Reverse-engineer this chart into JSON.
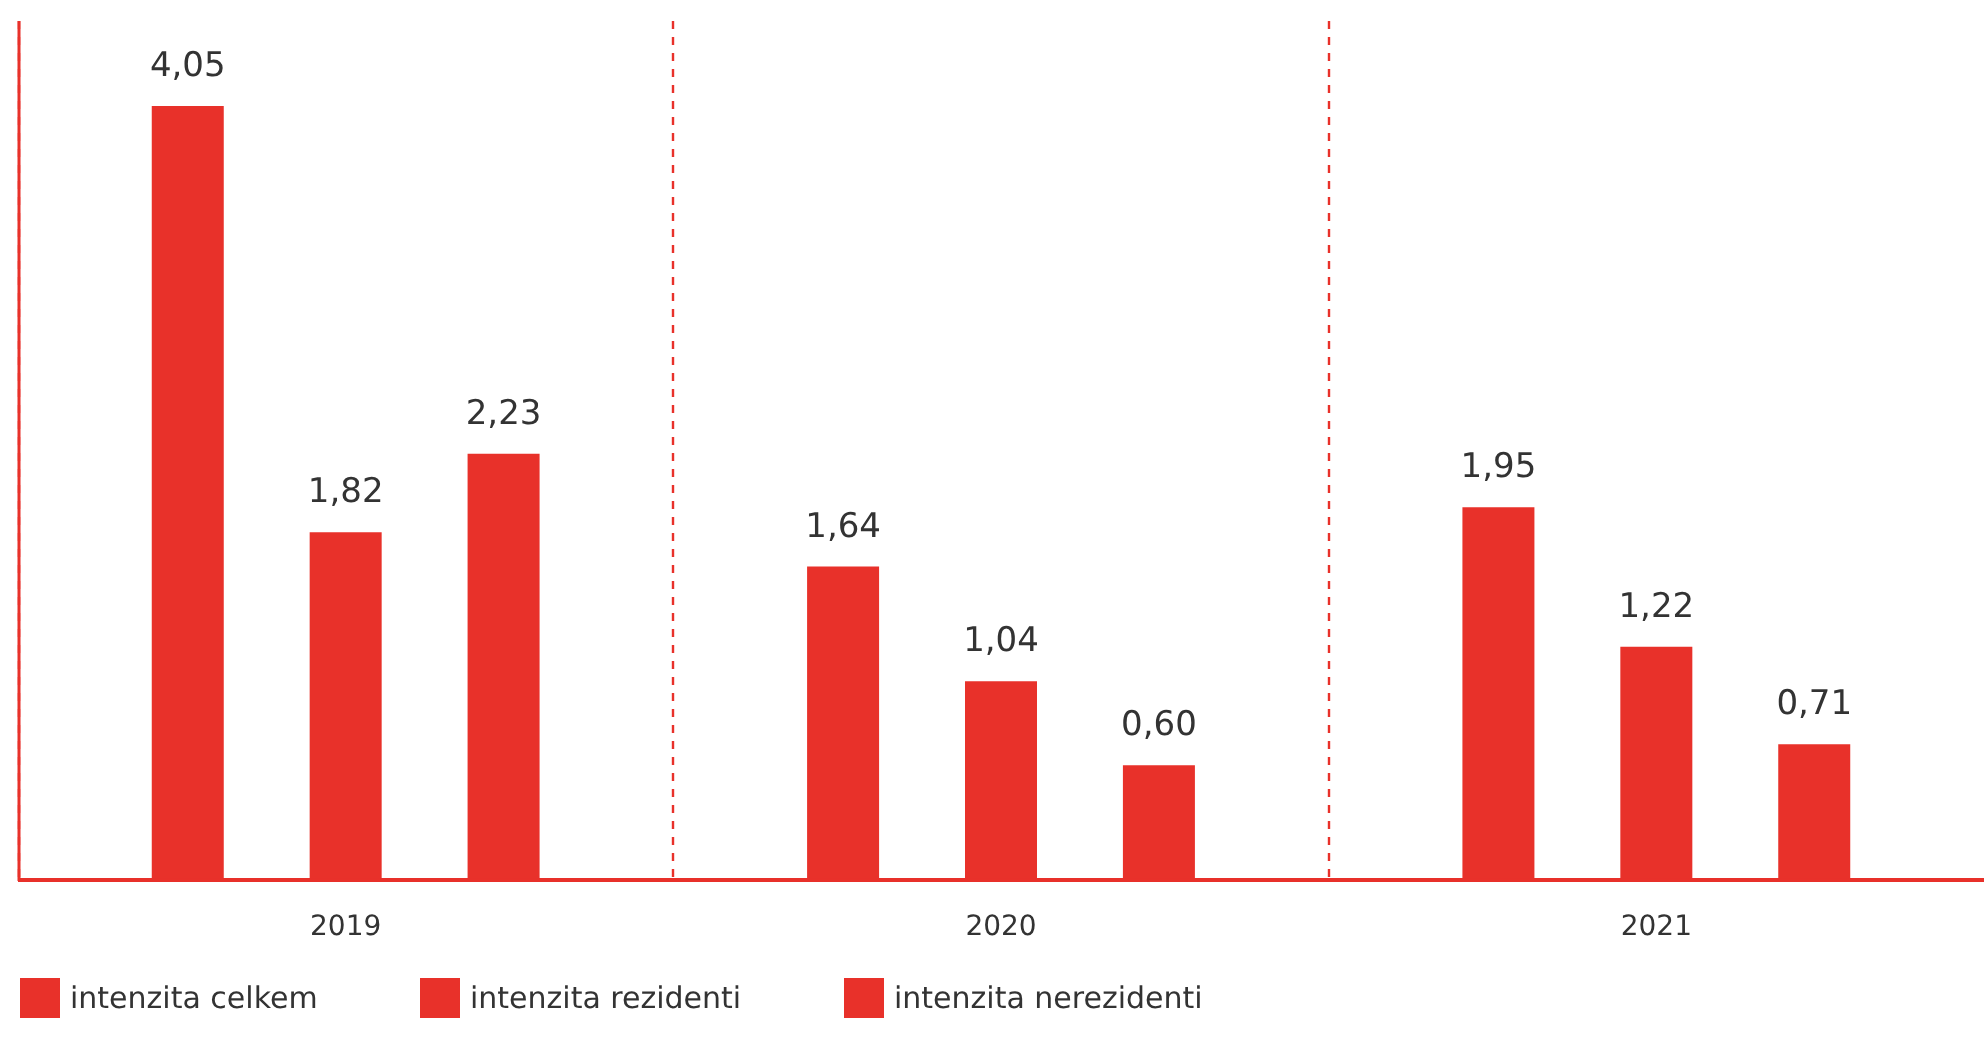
{
  "chart_data": {
    "type": "bar",
    "categories": [
      "2019",
      "2020",
      "2021"
    ],
    "series": [
      {
        "name": "intenzita celkem",
        "color": "#e8312a",
        "values": [
          4.05,
          1.64,
          1.95
        ],
        "value_labels": [
          "4,05",
          "1,64",
          "1,95"
        ]
      },
      {
        "name": "intenzita rezidenti",
        "color": "#e8312a",
        "values": [
          1.82,
          1.04,
          1.22
        ],
        "value_labels": [
          "1,82",
          "1,04",
          "1,22"
        ]
      },
      {
        "name": "intenzita nerezidenti",
        "color": "#e8312a",
        "values": [
          2.23,
          0.6,
          0.71
        ],
        "value_labels": [
          "2,23",
          "0,60",
          "0,71"
        ]
      }
    ],
    "grid": "x",
    "legend": "bottom",
    "tick_labels": "x"
  }
}
